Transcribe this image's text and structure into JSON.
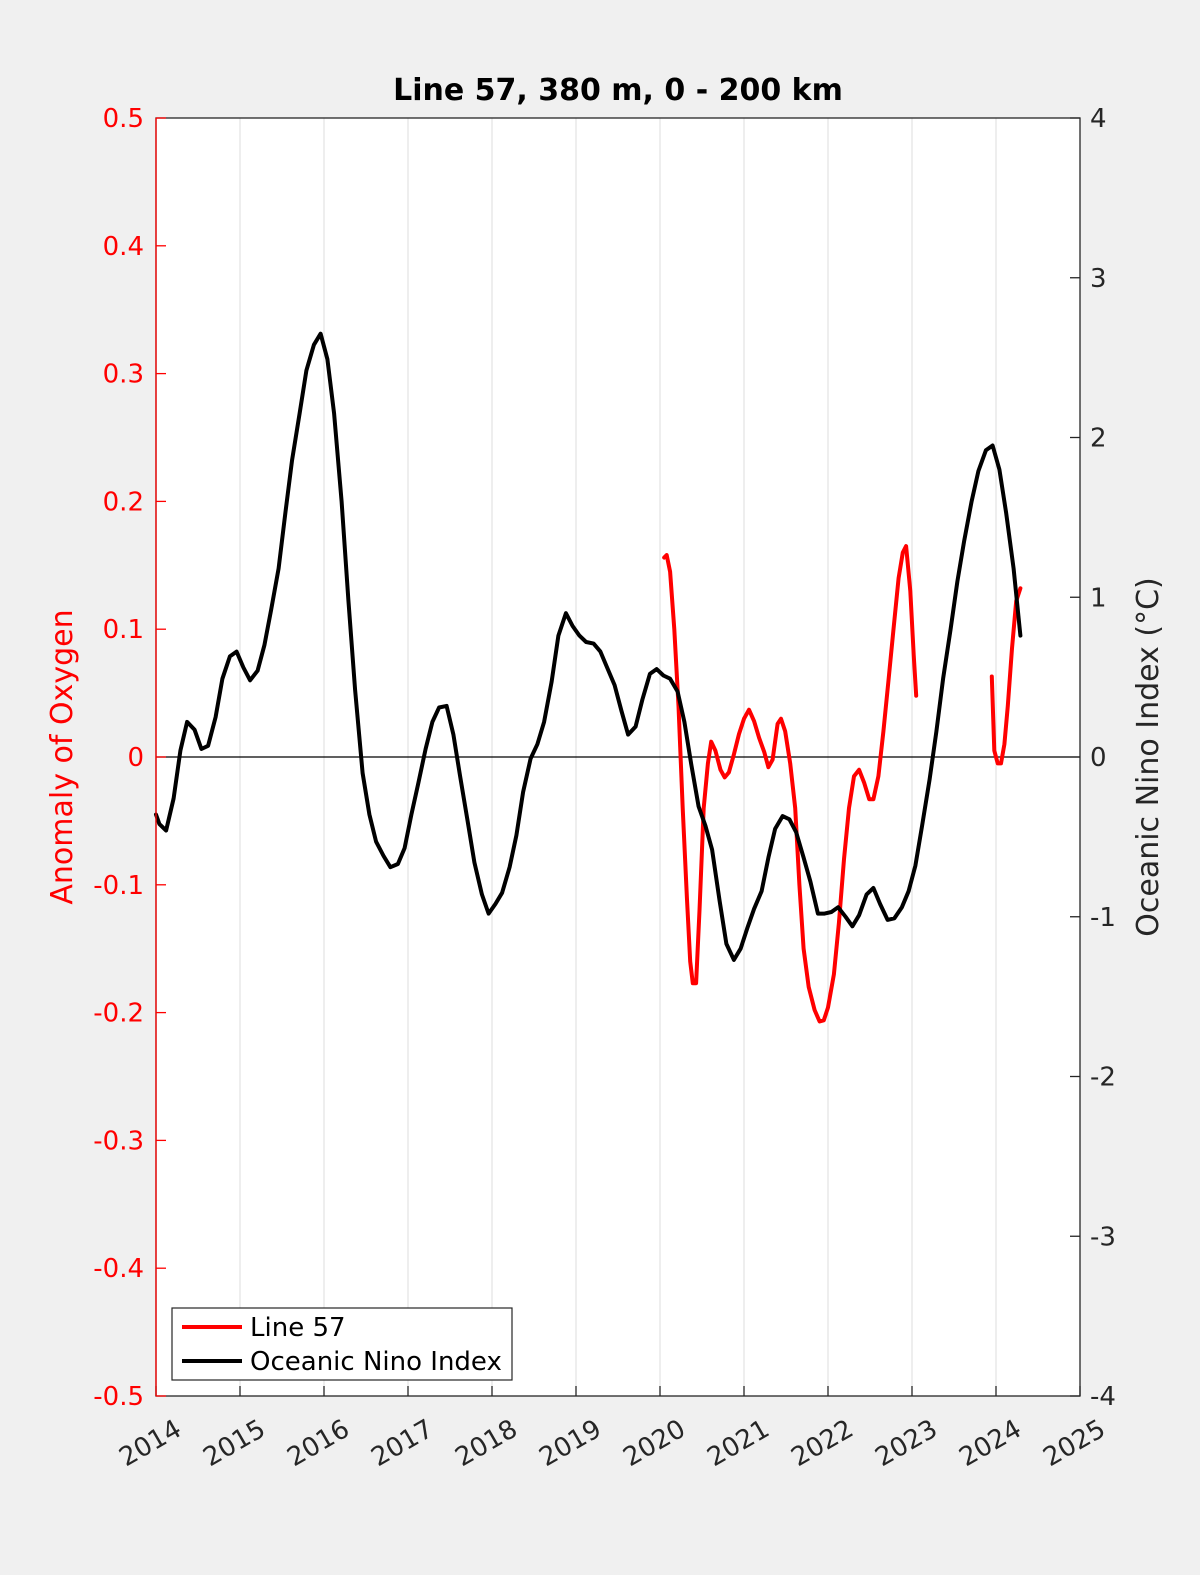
{
  "chart_data": {
    "type": "line",
    "title": "Line 57, 380 m, 0 - 200 km",
    "xlabel": "",
    "xlim": [
      2014,
      2025
    ],
    "x_ticks": [
      2014,
      2015,
      2016,
      2017,
      2018,
      2019,
      2020,
      2021,
      2022,
      2023,
      2024,
      2025
    ],
    "y_left": {
      "label": "Anomaly of Oxygen",
      "lim": [
        -0.5,
        0.5
      ],
      "ticks": [
        "-0.5",
        "-0.4",
        "-0.3",
        "-0.2",
        "-0.1",
        "0",
        "0.1",
        "0.2",
        "0.3",
        "0.4",
        "0.5"
      ],
      "color": "#ff0000"
    },
    "y_right": {
      "label": "Oceanic Nino Index (°C)",
      "lim": [
        -4,
        4
      ],
      "ticks": [
        "-4",
        "-3",
        "-2",
        "-1",
        "0",
        "1",
        "2",
        "3",
        "4"
      ],
      "color": "#262626"
    },
    "grid": "x",
    "zero_line": true,
    "legend_position": "bottom-left",
    "series": [
      {
        "name": "Line 57",
        "axis": "left",
        "color": "#ff0000",
        "segments": [
          [
            [
              2020.05,
              0.156
            ],
            [
              2020.08,
              0.158
            ],
            [
              2020.12,
              0.145
            ],
            [
              2020.17,
              0.1
            ],
            [
              2020.22,
              0.04
            ],
            [
              2020.27,
              -0.04
            ],
            [
              2020.32,
              -0.11
            ],
            [
              2020.36,
              -0.16
            ],
            [
              2020.39,
              -0.177
            ],
            [
              2020.43,
              -0.177
            ],
            [
              2020.47,
              -0.12
            ],
            [
              2020.52,
              -0.04
            ],
            [
              2020.57,
              -0.005
            ],
            [
              2020.61,
              0.012
            ],
            [
              2020.66,
              0.005
            ],
            [
              2020.72,
              -0.01
            ],
            [
              2020.77,
              -0.016
            ],
            [
              2020.82,
              -0.012
            ],
            [
              2020.88,
              0.002
            ],
            [
              2020.94,
              0.018
            ],
            [
              2021.0,
              0.03
            ],
            [
              2021.06,
              0.037
            ],
            [
              2021.12,
              0.028
            ],
            [
              2021.18,
              0.015
            ],
            [
              2021.24,
              0.004
            ],
            [
              2021.29,
              -0.008
            ],
            [
              2021.34,
              -0.002
            ],
            [
              2021.4,
              0.026
            ],
            [
              2021.44,
              0.03
            ],
            [
              2021.49,
              0.02
            ],
            [
              2021.55,
              -0.005
            ],
            [
              2021.61,
              -0.04
            ],
            [
              2021.66,
              -0.1
            ],
            [
              2021.71,
              -0.15
            ],
            [
              2021.77,
              -0.18
            ],
            [
              2021.84,
              -0.198
            ],
            [
              2021.9,
              -0.207
            ],
            [
              2021.95,
              -0.206
            ],
            [
              2022.0,
              -0.196
            ],
            [
              2022.07,
              -0.17
            ],
            [
              2022.13,
              -0.13
            ],
            [
              2022.19,
              -0.08
            ],
            [
              2022.25,
              -0.04
            ],
            [
              2022.31,
              -0.015
            ],
            [
              2022.37,
              -0.01
            ],
            [
              2022.43,
              -0.02
            ],
            [
              2022.49,
              -0.033
            ],
            [
              2022.54,
              -0.033
            ],
            [
              2022.6,
              -0.015
            ],
            [
              2022.66,
              0.02
            ],
            [
              2022.72,
              0.06
            ],
            [
              2022.78,
              0.1
            ],
            [
              2022.84,
              0.14
            ],
            [
              2022.89,
              0.16
            ],
            [
              2022.93,
              0.165
            ],
            [
              2022.98,
              0.13
            ],
            [
              2023.02,
              0.08
            ],
            [
              2023.05,
              0.048
            ]
          ],
          [
            [
              2023.95,
              0.063
            ],
            [
              2023.98,
              0.005
            ],
            [
              2024.02,
              -0.005
            ],
            [
              2024.06,
              -0.005
            ],
            [
              2024.1,
              0.01
            ],
            [
              2024.14,
              0.04
            ],
            [
              2024.19,
              0.085
            ],
            [
              2024.24,
              0.122
            ],
            [
              2024.29,
              0.132
            ]
          ]
        ]
      },
      {
        "name": "Oceanic Nino Index",
        "axis": "right",
        "color": "#000000",
        "segments": [
          [
            [
              2014.0,
              -0.36
            ],
            [
              2014.04,
              -0.42
            ],
            [
              2014.12,
              -0.46
            ],
            [
              2014.21,
              -0.26
            ],
            [
              2014.29,
              0.04
            ],
            [
              2014.37,
              0.22
            ],
            [
              2014.46,
              0.17
            ],
            [
              2014.54,
              0.05
            ],
            [
              2014.62,
              0.07
            ],
            [
              2014.71,
              0.25
            ],
            [
              2014.79,
              0.49
            ],
            [
              2014.88,
              0.63
            ],
            [
              2014.96,
              0.66
            ],
            [
              2015.04,
              0.56
            ],
            [
              2015.12,
              0.48
            ],
            [
              2015.21,
              0.54
            ],
            [
              2015.29,
              0.7
            ],
            [
              2015.37,
              0.92
            ],
            [
              2015.46,
              1.18
            ],
            [
              2015.54,
              1.53
            ],
            [
              2015.62,
              1.86
            ],
            [
              2015.71,
              2.15
            ],
            [
              2015.79,
              2.42
            ],
            [
              2015.88,
              2.58
            ],
            [
              2015.96,
              2.65
            ],
            [
              2016.04,
              2.49
            ],
            [
              2016.12,
              2.15
            ],
            [
              2016.21,
              1.6
            ],
            [
              2016.29,
              0.98
            ],
            [
              2016.37,
              0.42
            ],
            [
              2016.46,
              -0.1
            ],
            [
              2016.54,
              -0.36
            ],
            [
              2016.62,
              -0.53
            ],
            [
              2016.71,
              -0.62
            ],
            [
              2016.79,
              -0.69
            ],
            [
              2016.88,
              -0.67
            ],
            [
              2016.96,
              -0.57
            ],
            [
              2017.04,
              -0.36
            ],
            [
              2017.12,
              -0.17
            ],
            [
              2017.21,
              0.05
            ],
            [
              2017.29,
              0.22
            ],
            [
              2017.37,
              0.31
            ],
            [
              2017.46,
              0.32
            ],
            [
              2017.54,
              0.14
            ],
            [
              2017.62,
              -0.12
            ],
            [
              2017.71,
              -0.4
            ],
            [
              2017.79,
              -0.66
            ],
            [
              2017.88,
              -0.86
            ],
            [
              2017.96,
              -0.98
            ],
            [
              2018.04,
              -0.92
            ],
            [
              2018.12,
              -0.85
            ],
            [
              2018.21,
              -0.69
            ],
            [
              2018.29,
              -0.49
            ],
            [
              2018.37,
              -0.22
            ],
            [
              2018.46,
              -0.01
            ],
            [
              2018.54,
              0.08
            ],
            [
              2018.62,
              0.22
            ],
            [
              2018.71,
              0.47
            ],
            [
              2018.79,
              0.76
            ],
            [
              2018.88,
              0.9
            ],
            [
              2018.96,
              0.82
            ],
            [
              2019.04,
              0.76
            ],
            [
              2019.12,
              0.72
            ],
            [
              2019.21,
              0.71
            ],
            [
              2019.29,
              0.66
            ],
            [
              2019.37,
              0.56
            ],
            [
              2019.46,
              0.45
            ],
            [
              2019.54,
              0.29
            ],
            [
              2019.62,
              0.14
            ],
            [
              2019.71,
              0.19
            ],
            [
              2019.79,
              0.36
            ],
            [
              2019.88,
              0.52
            ],
            [
              2019.96,
              0.55
            ],
            [
              2020.04,
              0.51
            ],
            [
              2020.12,
              0.49
            ],
            [
              2020.21,
              0.41
            ],
            [
              2020.29,
              0.22
            ],
            [
              2020.37,
              -0.04
            ],
            [
              2020.46,
              -0.31
            ],
            [
              2020.54,
              -0.43
            ],
            [
              2020.62,
              -0.58
            ],
            [
              2020.71,
              -0.9
            ],
            [
              2020.79,
              -1.17
            ],
            [
              2020.88,
              -1.27
            ],
            [
              2020.96,
              -1.2
            ],
            [
              2021.04,
              -1.07
            ],
            [
              2021.12,
              -0.95
            ],
            [
              2021.21,
              -0.84
            ],
            [
              2021.29,
              -0.63
            ],
            [
              2021.37,
              -0.45
            ],
            [
              2021.46,
              -0.37
            ],
            [
              2021.54,
              -0.39
            ],
            [
              2021.62,
              -0.47
            ],
            [
              2021.71,
              -0.63
            ],
            [
              2021.79,
              -0.78
            ],
            [
              2021.88,
              -0.98
            ],
            [
              2021.96,
              -0.98
            ],
            [
              2022.04,
              -0.97
            ],
            [
              2022.12,
              -0.94
            ],
            [
              2022.21,
              -1.0
            ],
            [
              2022.29,
              -1.06
            ],
            [
              2022.37,
              -0.99
            ],
            [
              2022.46,
              -0.86
            ],
            [
              2022.54,
              -0.82
            ],
            [
              2022.62,
              -0.92
            ],
            [
              2022.71,
              -1.02
            ],
            [
              2022.79,
              -1.01
            ],
            [
              2022.88,
              -0.94
            ],
            [
              2022.96,
              -0.84
            ],
            [
              2023.04,
              -0.68
            ],
            [
              2023.12,
              -0.43
            ],
            [
              2023.21,
              -0.14
            ],
            [
              2023.29,
              0.16
            ],
            [
              2023.37,
              0.49
            ],
            [
              2023.46,
              0.8
            ],
            [
              2023.54,
              1.1
            ],
            [
              2023.62,
              1.35
            ],
            [
              2023.71,
              1.6
            ],
            [
              2023.79,
              1.79
            ],
            [
              2023.88,
              1.92
            ],
            [
              2023.96,
              1.95
            ],
            [
              2024.04,
              1.8
            ],
            [
              2024.12,
              1.53
            ],
            [
              2024.21,
              1.18
            ],
            [
              2024.29,
              0.76
            ]
          ]
        ]
      }
    ]
  }
}
